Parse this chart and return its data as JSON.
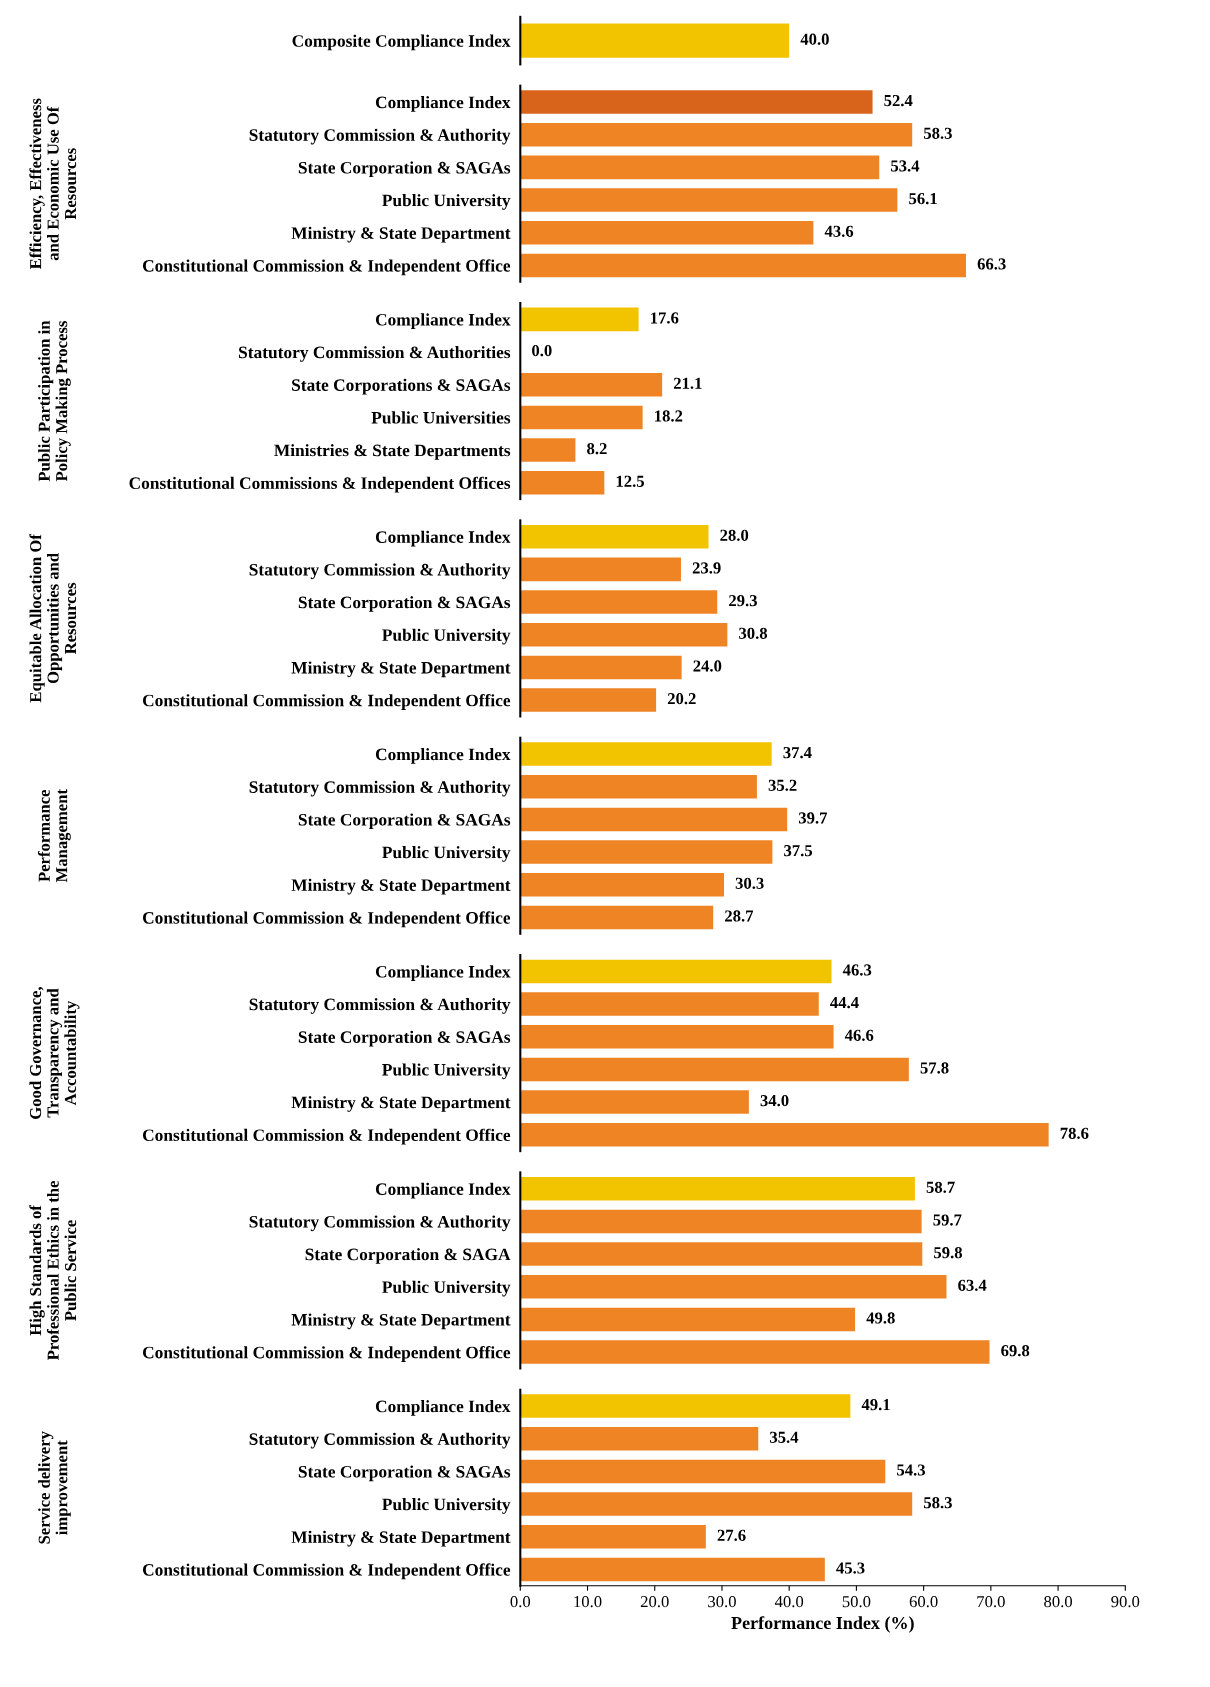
{
  "chart_data": [
    {
      "type": "bar",
      "orientation": "horizontal",
      "categories": [
        "Composite Compliance Index"
      ],
      "values": [
        40.0
      ],
      "colors": [
        "#f2c400"
      ],
      "value_labels": [
        "40.0"
      ],
      "xlim": [
        0,
        90
      ],
      "tick_labels": "y"
    },
    {
      "type": "bar",
      "orientation": "horizontal",
      "ylabel": "Efficiency, Effectiveness and Economic Use Of Resources",
      "categories": [
        "Compliance Index",
        "Statutory Commission & Authority",
        "State Corporation & SAGAs",
        "Public University",
        "Ministry & State Department",
        "Constitutional Commission & Independent Office"
      ],
      "values": [
        52.4,
        58.3,
        53.4,
        56.1,
        43.6,
        66.3
      ],
      "colors": [
        "#d8641c",
        "#ee8424",
        "#ee8424",
        "#ee8424",
        "#ee8424",
        "#ee8424"
      ],
      "value_labels": [
        "52.4",
        "58.3",
        "53.4",
        "56.1",
        "43.6",
        "66.3"
      ],
      "xlim": [
        0,
        90
      ],
      "tick_labels": "y"
    },
    {
      "type": "bar",
      "orientation": "horizontal",
      "ylabel": "Public Participation in Policy Making Process",
      "categories": [
        "Compliance Index",
        "Statutory Commission & Authorities",
        "State Corporations & SAGAs",
        "Public Universities",
        "Ministries & State Departments",
        "Constitutional Commissions & Independent Offices"
      ],
      "values": [
        17.6,
        0.0,
        21.1,
        18.2,
        8.2,
        12.5
      ],
      "colors": [
        "#f2c400",
        "#ee8424",
        "#ee8424",
        "#ee8424",
        "#ee8424",
        "#ee8424"
      ],
      "value_labels": [
        "17.6",
        "0.0",
        "21.1",
        "18.2",
        "8.2",
        "12.5"
      ],
      "xlim": [
        0,
        90
      ],
      "tick_labels": "y"
    },
    {
      "type": "bar",
      "orientation": "horizontal",
      "ylabel": "Equitable Allocation Of Opportunities and Resources",
      "categories": [
        "Compliance Index",
        "Statutory Commission & Authority",
        "State Corporation & SAGAs",
        "Public University",
        "Ministry & State Department",
        "Constitutional Commission & Independent Office"
      ],
      "values": [
        28.0,
        23.9,
        29.3,
        30.8,
        24.0,
        20.2
      ],
      "colors": [
        "#f2c400",
        "#ee8424",
        "#ee8424",
        "#ee8424",
        "#ee8424",
        "#ee8424"
      ],
      "value_labels": [
        "28.0",
        "23.9",
        "29.3",
        "30.8",
        "24.0",
        "20.2"
      ],
      "xlim": [
        0,
        90
      ],
      "tick_labels": "y"
    },
    {
      "type": "bar",
      "orientation": "horizontal",
      "ylabel": "Performance Management",
      "categories": [
        "Compliance Index",
        "Statutory Commission & Authority",
        "State Corporation & SAGAs",
        "Public University",
        "Ministry & State Department",
        "Constitutional Commission & Independent Office"
      ],
      "values": [
        37.4,
        35.2,
        39.7,
        37.5,
        30.3,
        28.7
      ],
      "colors": [
        "#f2c400",
        "#ee8424",
        "#ee8424",
        "#ee8424",
        "#ee8424",
        "#ee8424"
      ],
      "value_labels": [
        "37.4",
        "35.2",
        "39.7",
        "37.5",
        "30.3",
        "28.7"
      ],
      "xlim": [
        0,
        90
      ],
      "tick_labels": "y"
    },
    {
      "type": "bar",
      "orientation": "horizontal",
      "ylabel": "Good Governance, Transparency and Accountability",
      "categories": [
        "Compliance Index",
        "Statutory Commission & Authority",
        "State Corporation & SAGAs",
        "Public University",
        "Ministry & State Department",
        "Constitutional Commission & Independent Office"
      ],
      "values": [
        46.3,
        44.4,
        46.6,
        57.8,
        34.0,
        78.6
      ],
      "colors": [
        "#f2c400",
        "#ee8424",
        "#ee8424",
        "#ee8424",
        "#ee8424",
        "#ee8424"
      ],
      "value_labels": [
        "46.3",
        "44.4",
        "46.6",
        "57.8",
        "34.0",
        "78.6"
      ],
      "xlim": [
        0,
        90
      ],
      "tick_labels": "y"
    },
    {
      "type": "bar",
      "orientation": "horizontal",
      "ylabel": "High Standards of Professional Ethics in the Public Service",
      "categories": [
        "Compliance Index",
        "Statutory Commission & Authority",
        "State Corporation & SAGA",
        "Public University",
        "Ministry & State Department",
        "Constitutional Commission & Independent Office"
      ],
      "values": [
        58.7,
        59.7,
        59.8,
        63.4,
        49.8,
        69.8
      ],
      "colors": [
        "#f2c400",
        "#ee8424",
        "#ee8424",
        "#ee8424",
        "#ee8424",
        "#ee8424"
      ],
      "value_labels": [
        "58.7",
        "59.7",
        "59.8",
        "63.4",
        "49.8",
        "69.8"
      ],
      "xlim": [
        0,
        90
      ],
      "tick_labels": "y"
    },
    {
      "type": "bar",
      "orientation": "horizontal",
      "ylabel": "Service delivery improvement",
      "xlabel": "Performance Index (%)",
      "categories": [
        "Compliance Index",
        "Statutory Commission & Authority",
        "State Corporation & SAGAs",
        "Public University",
        "Ministry & State Department",
        "Constitutional Commission & Independent Office"
      ],
      "values": [
        49.1,
        35.4,
        54.3,
        58.3,
        27.6,
        45.3
      ],
      "colors": [
        "#f2c400",
        "#ee8424",
        "#ee8424",
        "#ee8424",
        "#ee8424",
        "#ee8424"
      ],
      "value_labels": [
        "49.1",
        "35.4",
        "54.3",
        "58.3",
        "27.6",
        "45.3"
      ],
      "xlim": [
        0,
        90
      ],
      "xticks": [
        {
          "value": 0,
          "label": "0.0"
        },
        {
          "value": 10,
          "label": "10.0"
        },
        {
          "value": 20,
          "label": "20.0"
        },
        {
          "value": 30,
          "label": "30.0"
        },
        {
          "value": 40,
          "label": "40.0"
        },
        {
          "value": 50,
          "label": "50.0"
        },
        {
          "value": 60,
          "label": "60.0"
        },
        {
          "value": 70,
          "label": "70.0"
        },
        {
          "value": 80,
          "label": "80.0"
        },
        {
          "value": 90,
          "label": "90.0"
        }
      ]
    }
  ]
}
